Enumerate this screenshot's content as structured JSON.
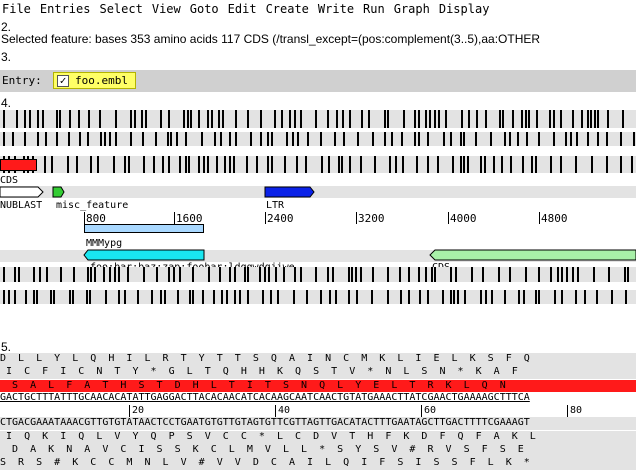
{
  "menu": [
    "File",
    "Entries",
    "Select",
    "View",
    "Goto",
    "Edit",
    "Create",
    "Write",
    "Run",
    "Graph",
    "Display"
  ],
  "markers": {
    "m2": "2.",
    "m3": "3.",
    "m4": "4.",
    "m5": "5."
  },
  "status_text": "Selected feature:  bases 353  amino acids 117  CDS  (/transl_except=(pos:complement(3..5),aa:OTHER",
  "entry": {
    "label": "Entry:",
    "name": "foo.embl",
    "checked": "✓"
  },
  "overview": {
    "labels": {
      "cds_top": "CDS",
      "nublast": "NUBLAST",
      "misc": "misc_feature",
      "ltr": "LTR",
      "mmmypg": "MMMypg",
      "foo": "foo;bar;baz;zap;foobar;ldqqwdqjiwe",
      "cds_bottom": "CDS"
    },
    "ruler": [
      "800",
      "1600",
      "2400",
      "3200",
      "4000",
      "4800"
    ]
  },
  "sequence": {
    "frame_top_1": "D  L  L  Y  L  Q  H  I  L  R  T  Y  T  T  S  Q  A  I  N  C  M  K  L  I  E  L  K  S  F  Q",
    "frame_top_2": " I  C  F  I  C  N  T  Y  *  G  L  T  Q  H  H  K  Q  S  T  V  *  N  L  S  N  *  K  A  F",
    "frame_top_3": "  S  A  L  F  A  T  H  S  T  D  H  L  T  I  T  S  N  Q  L  Y  E  L  T  R  K  L  Q  N",
    "forward": "GACTGCTTTATTTGCAACACATATTGAGGACTTACACAACATCACAAGCAATCAACTGTATGAAACTTATCGAACTGAAAAGCTTTCA",
    "ruler": [
      "20",
      "40",
      "60",
      "80"
    ],
    "reverse": "CTGACGAAATAAACGTTGTGTATAACTCCTGAATGTGTTGTAGTGTTCGTTAGTTGACATACTTTGAATAGCTTGACTTTTCGAAAGT",
    "frame_bot_1": " I  Q  K  I  Q  L  V  Y  Q  P  S  V  C  C  *  L  C  D  V  T  H  F  K  D  F  Q  F  A  K  L",
    "frame_bot_2": "  D  A  K  N  A  V  C  I  S  S  K  C  L  M  V  L  L  *  S  Y  S  V  #  R  V  S  F  S  E",
    "frame_bot_3": "S  R  S  #  K  C  C  M  N  L  V  #  V  V  D  C  A  I  L  Q  I  F  S  I  S  S  F  L  K  *"
  },
  "colors": {
    "cds": "#ff1a1a",
    "ltr": "#0b22e8",
    "misc": "#a9d8ff",
    "mmmypg": "#19e6f0",
    "cds_green": "#a8f0a8",
    "nublast_green": "#33cc33",
    "entry_yellow": "#ffff66"
  }
}
